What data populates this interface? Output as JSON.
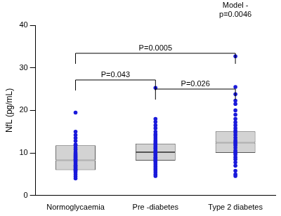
{
  "chart_data": {
    "type": "box",
    "categories": [
      "Normoglycaemia",
      "Pre -diabetes",
      "Type 2 diabetes"
    ],
    "y_label": "NfL (pg/mL)",
    "ylim": [
      0,
      40
    ],
    "yticks": [
      0,
      10,
      20,
      30,
      40
    ],
    "grid": false,
    "series": [
      {
        "type": "box",
        "color": "#d3d3d3",
        "q1": [
          6.0,
          8.2,
          10.0
        ],
        "median": [
          8.3,
          10.2,
          12.4
        ],
        "q3": [
          11.8,
          12.2,
          15.1
        ]
      },
      {
        "type": "scatter",
        "color": "#1a1adb",
        "marker": "circle",
        "values": [
          [
            19.5,
            15,
            14.2,
            13.5,
            12.8,
            12,
            11.8,
            11.2,
            10.8,
            10.2,
            9.8,
            9.5,
            9.2,
            9,
            8.7,
            8.5,
            8.3,
            8,
            7.6,
            7.2,
            7,
            6.8,
            6.5,
            6.2,
            6,
            5.8,
            5.5,
            5,
            4.5,
            4
          ],
          [
            25.3,
            18,
            17.3,
            16.5,
            15.8,
            15,
            14.4,
            14,
            13.5,
            13,
            12.6,
            12.2,
            12,
            11.6,
            11.2,
            11,
            10.6,
            10.3,
            10,
            9.7,
            9.4,
            9,
            8.8,
            8.5,
            8.2,
            8,
            7.6,
            7.2,
            6.8,
            6.4,
            6,
            5.5,
            5,
            4.6
          ],
          [
            32.7,
            25.5,
            23.8,
            22.3,
            21.5,
            20,
            19,
            18,
            17.2,
            16.5,
            15.8,
            15.2,
            14.8,
            14.2,
            13.6,
            13,
            12.6,
            12.2,
            11.8,
            11.2,
            10.6,
            10.2,
            10,
            9.6,
            9,
            8.5,
            7.8,
            7,
            5.8,
            5,
            4.6
          ]
        ]
      }
    ],
    "annotations": [
      {
        "text": "P=0.043",
        "from": "Normoglycaemia",
        "to": "Pre -diabetes"
      },
      {
        "text": "P=0.0005",
        "from": "Normoglycaemia",
        "to": "Type 2 diabetes"
      },
      {
        "text": "P=0.026",
        "from": "Pre -diabetes",
        "to": "Type 2 diabetes"
      },
      {
        "text": [
          "Model -",
          "p=0.0046"
        ],
        "at": "Type 2 diabetes"
      }
    ]
  }
}
